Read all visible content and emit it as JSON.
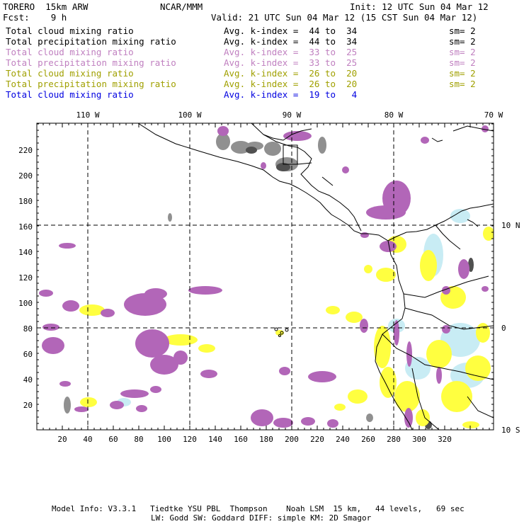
{
  "header": {
    "model": "TORERO  15km ARW",
    "org": "NCAR/MMM",
    "init": "Init: 12 UTC Sun 04 Mar 12",
    "fcst": "Fcst:    9 h",
    "valid": "Valid: 21 UTC Sun 04 Mar 12 (15 CST Sun 04 Mar 12)"
  },
  "legend": [
    {
      "field": "Total cloud mixing ratio",
      "kindex": "Avg. k-index =  44 to  34",
      "sm": "sm= 2",
      "color": "#000000"
    },
    {
      "field": "Total precipitation mixing ratio",
      "kindex": "Avg. k-index =  44 to  34",
      "sm": "sm= 2",
      "color": "#000000"
    },
    {
      "field": "Total cloud mixing ratio",
      "kindex": "Avg. k-index =  33 to  25",
      "sm": "sm= 2",
      "color": "#c080c0"
    },
    {
      "field": "Total precipitation mixing ratio",
      "kindex": "Avg. k-index =  33 to  25",
      "sm": "sm= 2",
      "color": "#c080c0"
    },
    {
      "field": "Total cloud mixing ratio",
      "kindex": "Avg. k-index =  26 to  20",
      "sm": "sm= 2",
      "color": "#a0a000"
    },
    {
      "field": "Total precipitation mixing ratio",
      "kindex": "Avg. k-index =  26 to  20",
      "sm": "sm= 2",
      "color": "#a0a000"
    },
    {
      "field": "Total cloud mixing ratio",
      "kindex": "Avg. k-index =  19 to   4",
      "sm": "",
      "color": "#0000e0"
    }
  ],
  "longitudes": [
    "110 W",
    "100 W",
    "90 W",
    "80 W",
    "70 W"
  ],
  "latitudes": [
    "10 N",
    "0",
    "10 S"
  ],
  "x_ticks": [
    "20",
    "40",
    "60",
    "80",
    "100",
    "120",
    "140",
    "160",
    "180",
    "200",
    "220",
    "240",
    "260",
    "280",
    "300",
    "320"
  ],
  "y_ticks": [
    "20",
    "40",
    "60",
    "80",
    "100",
    "120",
    "140",
    "160",
    "180",
    "200",
    "220"
  ],
  "colors": {
    "gray": "#909090",
    "dark_gray": "#505050",
    "purple": "#b266b8",
    "yellow": "#ffff40",
    "light_blue": "#c8ecf4"
  },
  "footer": {
    "line1": "Model Info: V3.3.1   Tiedtke YSU PBL  Thompson    Noah LSM  15 km,   44 levels,   69 sec",
    "line2": "LW: Godd SW: Goddard DIFF: simple KM: 2D Smagor"
  }
}
